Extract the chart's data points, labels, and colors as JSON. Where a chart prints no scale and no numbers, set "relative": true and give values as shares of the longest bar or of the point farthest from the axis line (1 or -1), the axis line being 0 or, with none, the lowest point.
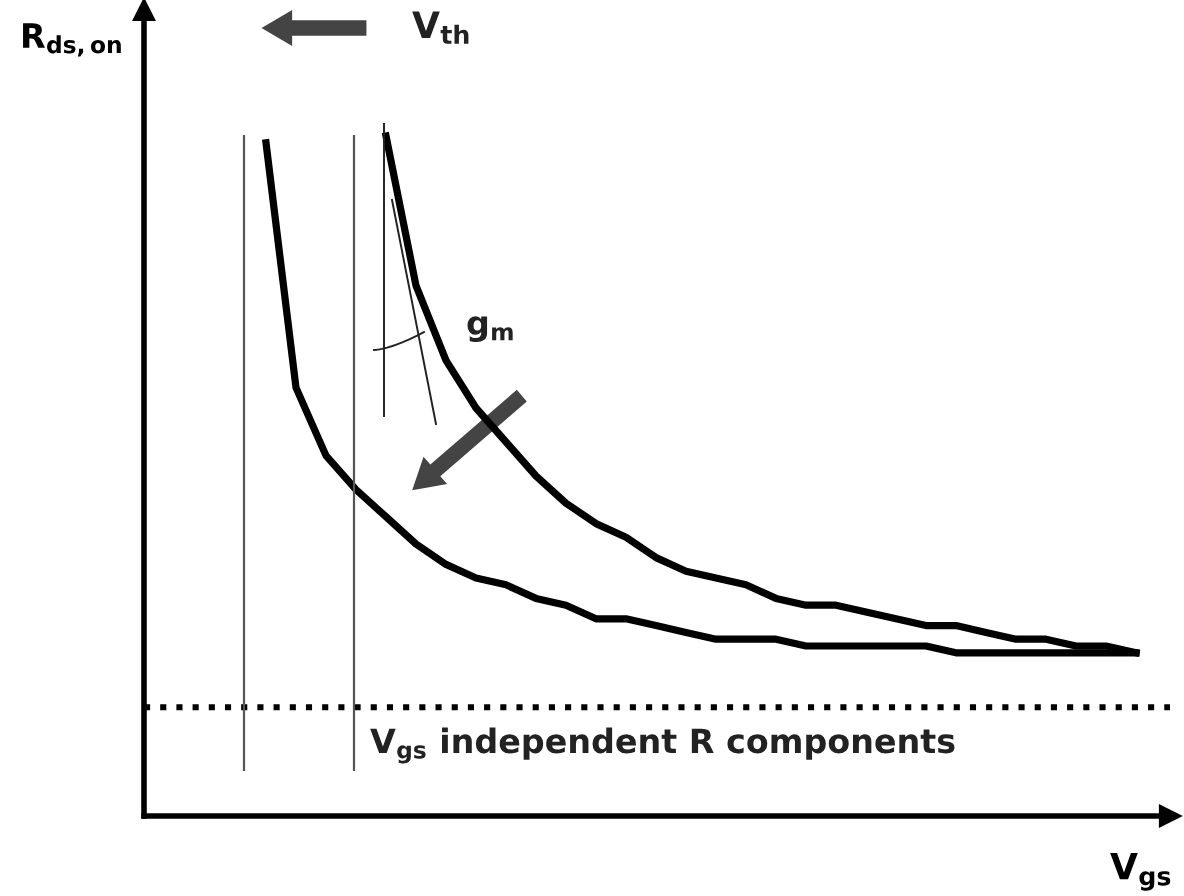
{
  "chart_data": {
    "type": "line",
    "relative": true,
    "xlabel": "V$_{gs}$",
    "ylabel": "R$_{ds,on}$",
    "categories": [
      null,
      null,
      null,
      null,
      null,
      null,
      null,
      null,
      null,
      null,
      null,
      null,
      null,
      null,
      null,
      null,
      null,
      null,
      null,
      null,
      null,
      null,
      null,
      null,
      null,
      null,
      null,
      null,
      null,
      null
    ],
    "series": [
      {
        "color": "#000000",
        "values": [
          0.99,
          0.63,
          0.53,
          0.48,
          0.44,
          0.4,
          0.37,
          0.35,
          0.34,
          0.32,
          0.31,
          0.29,
          0.29,
          0.28,
          0.27,
          0.26,
          0.26,
          0.26,
          0.25,
          0.25,
          0.25,
          0.25,
          0.25,
          0.24,
          0.24,
          0.24,
          0.24,
          0.24,
          0.24,
          0.24
        ]
      },
      {
        "color": "#000000",
        "values": [
          null,
          null,
          null,
          null,
          1.0,
          0.78,
          0.67,
          0.6,
          0.55,
          0.5,
          0.46,
          0.43,
          0.41,
          0.38,
          0.36,
          0.35,
          0.34,
          0.32,
          0.31,
          0.31,
          0.3,
          0.29,
          0.28,
          0.28,
          0.27,
          0.26,
          0.26,
          0.25,
          0.25,
          0.24
        ]
      }
    ],
    "ref_lines": [
      {
        "axis": "y",
        "value": 0.16,
        "label": "V$_{gs}$ independent R components",
        "line_style": "dotted"
      }
    ],
    "annotations": [
      "V$_{th}$",
      "g$_{m}$"
    ],
    "legend": false,
    "grid": false,
    "marker": "none",
    "line_style": "solid"
  }
}
